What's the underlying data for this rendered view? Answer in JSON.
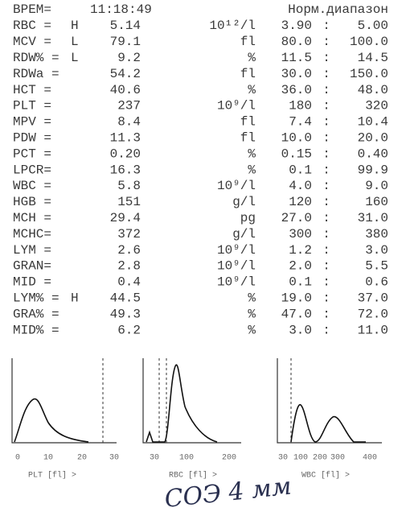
{
  "header": {
    "time_label": "ВРЕМ=",
    "time": "11:18:49",
    "range_label": "Норм.диапазон"
  },
  "rows": [
    {
      "name": "RBC =",
      "flag": "H",
      "value": "5.14",
      "unit": "10¹²/l",
      "low": "3.90",
      "high": "5.00"
    },
    {
      "name": "MCV =",
      "flag": "L",
      "value": "79.1",
      "unit": "fl",
      "low": "80.0",
      "high": "100.0"
    },
    {
      "name": "RDW% =",
      "flag": "L",
      "value": "9.2",
      "unit": "%",
      "low": "11.5",
      "high": "14.5"
    },
    {
      "name": "RDWa =",
      "flag": "",
      "value": "54.2",
      "unit": "fl",
      "low": "30.0",
      "high": "150.0"
    },
    {
      "name": "HCT =",
      "flag": "",
      "value": "40.6",
      "unit": "%",
      "low": "36.0",
      "high": "48.0"
    },
    {
      "name": "PLT =",
      "flag": "",
      "value": "237",
      "unit": "10⁹/l",
      "low": "180",
      "high": "320"
    },
    {
      "name": "MPV =",
      "flag": "",
      "value": "8.4",
      "unit": "fl",
      "low": "7.4",
      "high": "10.4"
    },
    {
      "name": "PDW =",
      "flag": "",
      "value": "11.3",
      "unit": "fl",
      "low": "10.0",
      "high": "20.0"
    },
    {
      "name": "PCT =",
      "flag": "",
      "value": "0.20",
      "unit": "%",
      "low": "0.15",
      "high": "0.40"
    },
    {
      "name": "LPCR=",
      "flag": "",
      "value": "16.3",
      "unit": "%",
      "low": "0.1",
      "high": "99.9"
    },
    {
      "name": "WBC =",
      "flag": "",
      "value": "5.8",
      "unit": "10⁹/l",
      "low": "4.0",
      "high": "9.0"
    },
    {
      "name": "HGB =",
      "flag": "",
      "value": "151",
      "unit": "g/l",
      "low": "120",
      "high": "160"
    },
    {
      "name": "MCH =",
      "flag": "",
      "value": "29.4",
      "unit": "pg",
      "low": "27.0",
      "high": "31.0"
    },
    {
      "name": "MCHC=",
      "flag": "",
      "value": "372",
      "unit": "g/l",
      "low": "300",
      "high": "380"
    },
    {
      "name": "LYM =",
      "flag": "",
      "value": "2.6",
      "unit": "10⁹/l",
      "low": "1.2",
      "high": "3.0"
    },
    {
      "name": "GRAN=",
      "flag": "",
      "value": "2.8",
      "unit": "10⁹/l",
      "low": "2.0",
      "high": "5.5"
    },
    {
      "name": "MID =",
      "flag": "",
      "value": "0.4",
      "unit": "10⁹/l",
      "low": "0.1",
      "high": "0.6"
    },
    {
      "name": "LYM% =",
      "flag": "H",
      "value": "44.5",
      "unit": "%",
      "low": "19.0",
      "high": "37.0"
    },
    {
      "name": "GRA% =",
      "flag": "",
      "value": "49.3",
      "unit": "%",
      "low": "47.0",
      "high": "72.0"
    },
    {
      "name": "MID% =",
      "flag": "",
      "value": "6.2",
      "unit": "%",
      "low": "3.0",
      "high": "11.0"
    }
  ],
  "histograms": [
    {
      "ticks": [
        "0",
        "10",
        "20",
        "30"
      ],
      "caption": "PLT [fl] >"
    },
    {
      "ticks": [
        "30",
        "100",
        "200"
      ],
      "caption": "RBC [fl] >"
    },
    {
      "ticks": [
        "30",
        "100",
        "200",
        "300",
        "400"
      ],
      "caption": "WBC [fl] >"
    }
  ],
  "handwriting": "СОЭ 4 мм"
}
